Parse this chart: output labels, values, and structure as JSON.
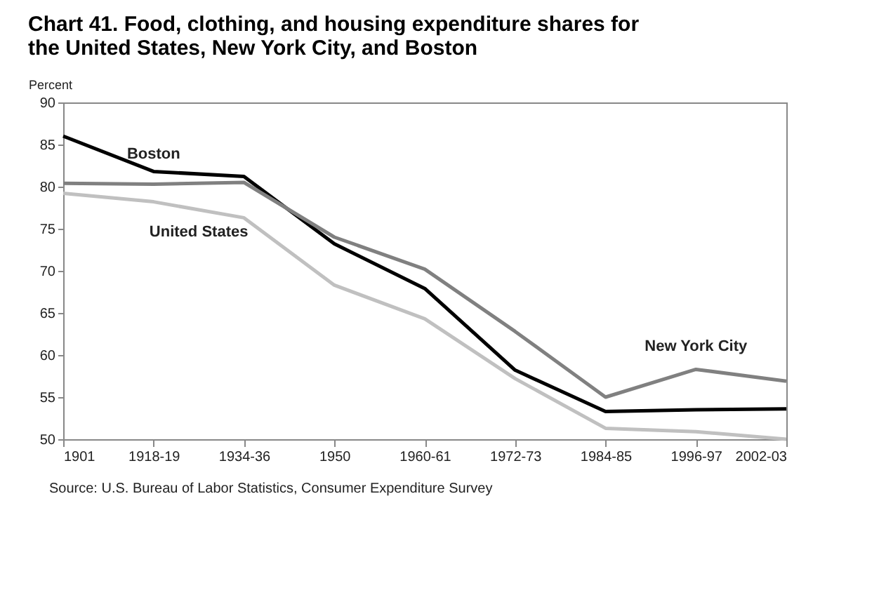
{
  "chart_data": {
    "type": "line",
    "title": "Chart 41. Food, clothing, and housing expenditure shares for the United States, New York City, and Boston",
    "ylabel": "Percent",
    "categories": [
      "1901",
      "1918-19",
      "1934-36",
      "1950",
      "1960-61",
      "1972-73",
      "1984-85",
      "1996-97",
      "2002-03"
    ],
    "series": [
      {
        "name": "Boston",
        "color": "#000000",
        "values": [
          86,
          81.8,
          81.2,
          73.2,
          67.9,
          58.2,
          53.3,
          53.5,
          53.6
        ]
      },
      {
        "name": "New York City",
        "color": "#808080",
        "values": [
          80.4,
          80.3,
          80.5,
          74,
          70.2,
          62.8,
          55,
          58.3,
          56.9
        ]
      },
      {
        "name": "United States",
        "color": "#c0c0c0",
        "values": [
          79.2,
          78.2,
          76.3,
          68.3,
          64.3,
          57.2,
          51.3,
          50.9,
          50
        ]
      }
    ],
    "ylim": [
      50,
      90
    ],
    "yticks": [
      50,
      55,
      60,
      65,
      70,
      75,
      80,
      85,
      90
    ],
    "grid": false,
    "legend": false,
    "marker": "none",
    "line_style": "solid",
    "annotations": [
      "Source: U.S. Bureau of Labor Statistics, Consumer Expenditure Survey"
    ]
  }
}
